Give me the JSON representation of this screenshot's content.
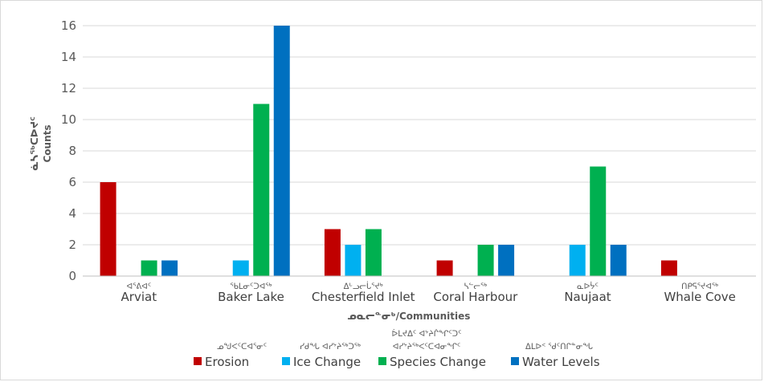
{
  "chart_data": {
    "type": "bar",
    "categories": [
      "Arviat",
      "Baker Lake",
      "Chesterfield Inlet",
      "Coral Harbour",
      "Naujaat",
      "Whale Cove"
    ],
    "category_labels_syllabics": [
      "ᐊᕐᕕᐊᑦ",
      "ᖃᒪᓂᑦᑐᐊᖅ",
      "ᐃᒡᓗᓕᒑᕐᔪᒃ",
      "ᓴᓪᓕᖅ",
      "ᓇᐅᔮᑦ",
      "ᑎᑭᕋᕐᔪᐊᖅ"
    ],
    "series": [
      {
        "name": "Erosion",
        "name_syllabics": "ᓄᖑᐸᑦᑕᐊᕐᓂᑦ",
        "color": "#C00000",
        "values": [
          6,
          0,
          3,
          1,
          0,
          1
        ]
      },
      {
        "name": "Ice Change",
        "name_syllabics": "ᓯᑯᖓ ᐊᓯᔾᔨᖅᑐᖅ",
        "color": "#00B0F0",
        "values": [
          0,
          1,
          2,
          0,
          2,
          0
        ]
      },
      {
        "name": "Species Change",
        "name_syllabics": "ᐆᒪᔪᐃᑦ ᐊᔾᔨᒌᖏᑦᑐᑦ ᐊᓯᔾᔨᖅᐸᑦᑕᐊᓂᖏᑦ",
        "color": "#00B050",
        "values": [
          1,
          11,
          3,
          2,
          7,
          0
        ]
      },
      {
        "name": "Water Levels",
        "name_syllabics": "ᐃᒪᐅᑉ ᖁᑦᑎᒋᓐᓂᖓ",
        "color": "#0070C0",
        "values": [
          1,
          16,
          0,
          2,
          2,
          0
        ]
      }
    ],
    "ylabel_syllabics": "ᓈᓴᖅᑕᐅᔪᑦ",
    "ylabel": "Counts",
    "xlabel": "ᓄᓇᓕᓐᓂᒃ/Communities",
    "ylim": [
      0,
      16
    ],
    "yticks": [
      0,
      2,
      4,
      6,
      8,
      10,
      12,
      14,
      16
    ],
    "grid": true,
    "legend_position": "bottom"
  }
}
